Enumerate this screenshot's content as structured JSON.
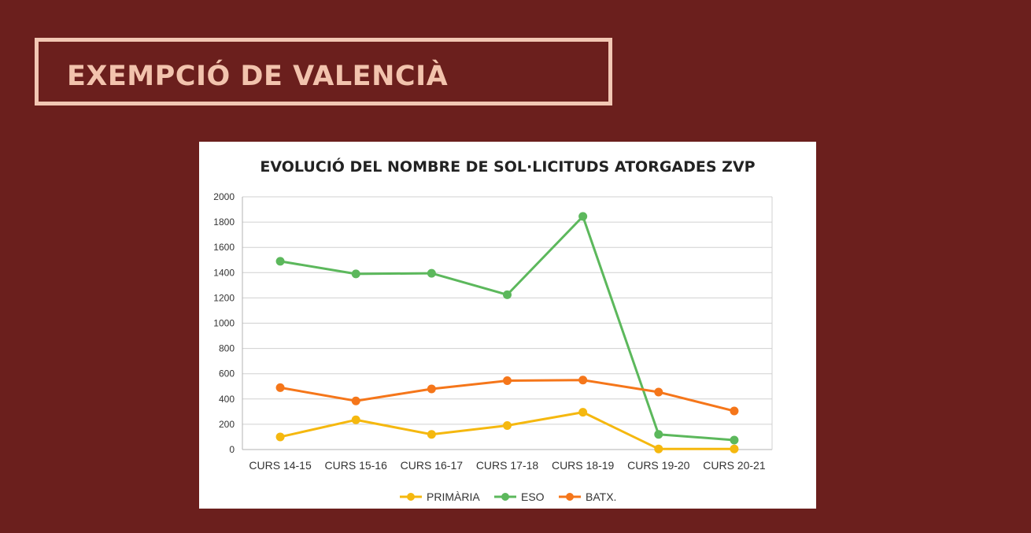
{
  "header": {
    "title": "EXEMPCIÓ DE VALENCIÀ"
  },
  "chart_data": {
    "type": "line",
    "title": "EVOLUCIÓ DEL NOMBRE DE SOL·LICITUDS ATORGADES ZVP",
    "xlabel": "",
    "ylabel": "",
    "ylim": [
      0,
      2000
    ],
    "yticks": [
      0,
      200,
      400,
      600,
      800,
      1000,
      1200,
      1400,
      1600,
      1800,
      2000
    ],
    "grid": true,
    "legend_position": "bottom",
    "categories": [
      "CURS 14-15",
      "CURS 15-16",
      "CURS 16-17",
      "CURS 17-18",
      "CURS 18-19",
      "CURS 19-20",
      "CURS 20-21"
    ],
    "series": [
      {
        "name": "PRIMÀRIA",
        "color": "#f5b80f",
        "values": [
          100,
          235,
          120,
          190,
          295,
          5,
          5
        ]
      },
      {
        "name": "ESO",
        "color": "#5cb85c",
        "values": [
          1490,
          1390,
          1395,
          1225,
          1845,
          120,
          75
        ]
      },
      {
        "name": "BATX.",
        "color": "#f5761a",
        "values": [
          490,
          385,
          480,
          545,
          550,
          455,
          305
        ]
      }
    ]
  }
}
